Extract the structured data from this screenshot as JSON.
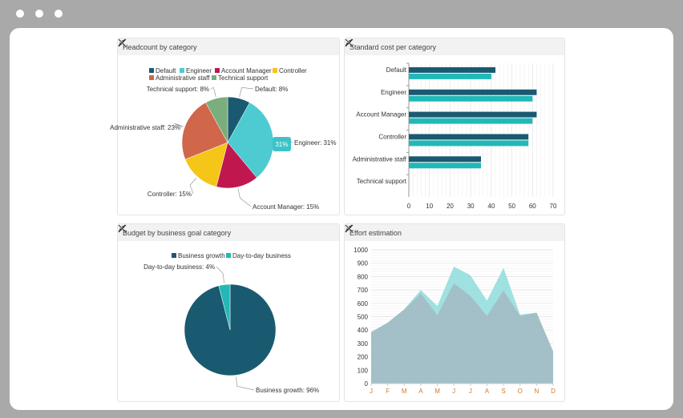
{
  "colors": {
    "dark": "#1a5a70",
    "teal": "#22b8b8"
  },
  "panels": [
    {
      "title": "Headcount by category",
      "minimize_icon": "minimize-arrows-icon",
      "close_icon": "close-icon"
    },
    {
      "title": "Standard cost per category",
      "minimize_icon": "minimize-arrows-icon",
      "close_icon": "close-icon"
    },
    {
      "title": "Budget by business goal category",
      "minimize_icon": "minimize-arrows-icon",
      "close_icon": "close-icon"
    },
    {
      "title": "Effort estimation",
      "minimize_icon": "minimize-arrows-icon",
      "close_icon": "close-icon"
    }
  ],
  "chart_data": [
    {
      "type": "pie",
      "title": "Headcount by category",
      "legend": "top",
      "slices": [
        {
          "name": "Default",
          "value": 8,
          "label": "Default: 8%",
          "color": "#1a5a70"
        },
        {
          "name": "Engineer",
          "value": 31,
          "label": "Engineer: 31%",
          "color": "#4ecbd0"
        },
        {
          "name": "Account Manager",
          "value": 15,
          "label": "Account Manager: 15%",
          "color": "#c0174f"
        },
        {
          "name": "Controller",
          "value": 15,
          "label": "Controller: 15%",
          "color": "#f5c518"
        },
        {
          "name": "Administrative staff",
          "value": 23,
          "label": "Administrative staff: 23%",
          "color": "#d0674a"
        },
        {
          "name": "Technical support",
          "value": 8,
          "label": "Technical support: 8%",
          "color": "#7aae7c"
        }
      ],
      "tooltip": "31%"
    },
    {
      "type": "bar",
      "orientation": "horizontal",
      "title": "Standard cost per category",
      "categories": [
        "Default",
        "Engineer",
        "Account Manager",
        "Controller",
        "Administrative staff",
        "Technical support"
      ],
      "series": [
        {
          "values": [
            42,
            62,
            62,
            58,
            35,
            0
          ],
          "color": "#1a5a70"
        },
        {
          "values": [
            40,
            60,
            60,
            58,
            35,
            0
          ],
          "color": "#22b8b8"
        }
      ],
      "xlim": [
        0,
        70
      ],
      "xticks": [
        "0",
        "10",
        "20",
        "30",
        "40",
        "50",
        "60",
        "70"
      ],
      "grid": true
    },
    {
      "type": "pie",
      "title": "Budget by business goal category",
      "legend": "top",
      "slices": [
        {
          "name": "Business growth",
          "value": 96,
          "label": "Business growth: 96%",
          "color": "#1a5a70"
        },
        {
          "name": "Day-to-day business",
          "value": 4,
          "label": "Day-to-day business: 4%",
          "color": "#22b8b8"
        }
      ]
    },
    {
      "type": "area",
      "title": "Effort estimation",
      "categories": [
        "J",
        "F",
        "M",
        "A",
        "M",
        "J",
        "J",
        "A",
        "S",
        "O",
        "N",
        "D"
      ],
      "series": [
        {
          "values": [
            385,
            455,
            555,
            700,
            580,
            875,
            810,
            620,
            865,
            515,
            530,
            240
          ],
          "color": "#8fdcdc"
        },
        {
          "values": [
            385,
            455,
            555,
            675,
            510,
            750,
            655,
            505,
            695,
            505,
            530,
            240
          ],
          "color": "#a3b9c2"
        }
      ],
      "ylim": [
        0,
        1000
      ],
      "yticks": [
        "0",
        "100",
        "200",
        "300",
        "400",
        "500",
        "600",
        "700",
        "800",
        "900",
        "1000"
      ],
      "grid": true
    }
  ]
}
